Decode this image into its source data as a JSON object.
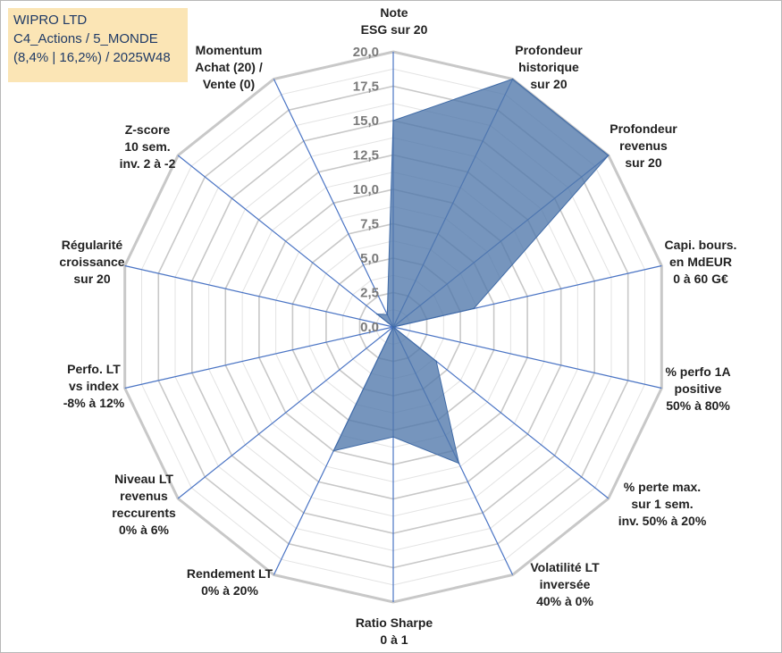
{
  "title": {
    "line1": "WIPRO LTD",
    "line2": "C4_Actions / 5_MONDE",
    "line3": "(8,4% | 16,2%) / 2025W48"
  },
  "chart_data": {
    "type": "radar",
    "title": "WIPRO LTD",
    "rlim": [
      0,
      20
    ],
    "ticks": [
      "0,0",
      "2,5",
      "5,0",
      "7,5",
      "10,0",
      "12,5",
      "15,0",
      "17,5",
      "20,0"
    ],
    "grid": true,
    "axes": [
      [
        "Note",
        "ESG sur 20"
      ],
      [
        "Profondeur",
        "historique",
        "sur 20"
      ],
      [
        "Profondeur",
        "revenus",
        "sur 20"
      ],
      [
        "Capi. bours.",
        "en MdEUR",
        "0 à 60 G€"
      ],
      [
        "% perfo 1A",
        "positive",
        "50% à 80%"
      ],
      [
        "% perte max.",
        "sur 1 sem.",
        "inv. 50% à 20%"
      ],
      [
        "Volatilité LT",
        "inversée",
        "40% à 0%"
      ],
      [
        "Ratio Sharpe",
        "0 à 1"
      ],
      [
        "Rendement LT",
        "0% à 20%"
      ],
      [
        "Niveau LT",
        "revenus",
        "reccurents",
        "0% à 6%"
      ],
      [
        "Perfo. LT",
        "vs index",
        "-8% à 12%"
      ],
      [
        "Régularité",
        "croissance",
        "sur 20"
      ],
      [
        "Z-score",
        "10 sem.",
        "inv. 2 à -2"
      ],
      [
        "Momentum",
        "Achat (20) /",
        "Vente (0)"
      ]
    ],
    "series": [
      {
        "name": "WIPRO LTD",
        "color": "#4f77aa",
        "values": [
          15.0,
          20.0,
          20.0,
          6.0,
          0.0,
          4.0,
          11.0,
          8.0,
          10.0,
          0.0,
          0.0,
          0.0,
          1.5,
          1.0
        ]
      }
    ]
  }
}
